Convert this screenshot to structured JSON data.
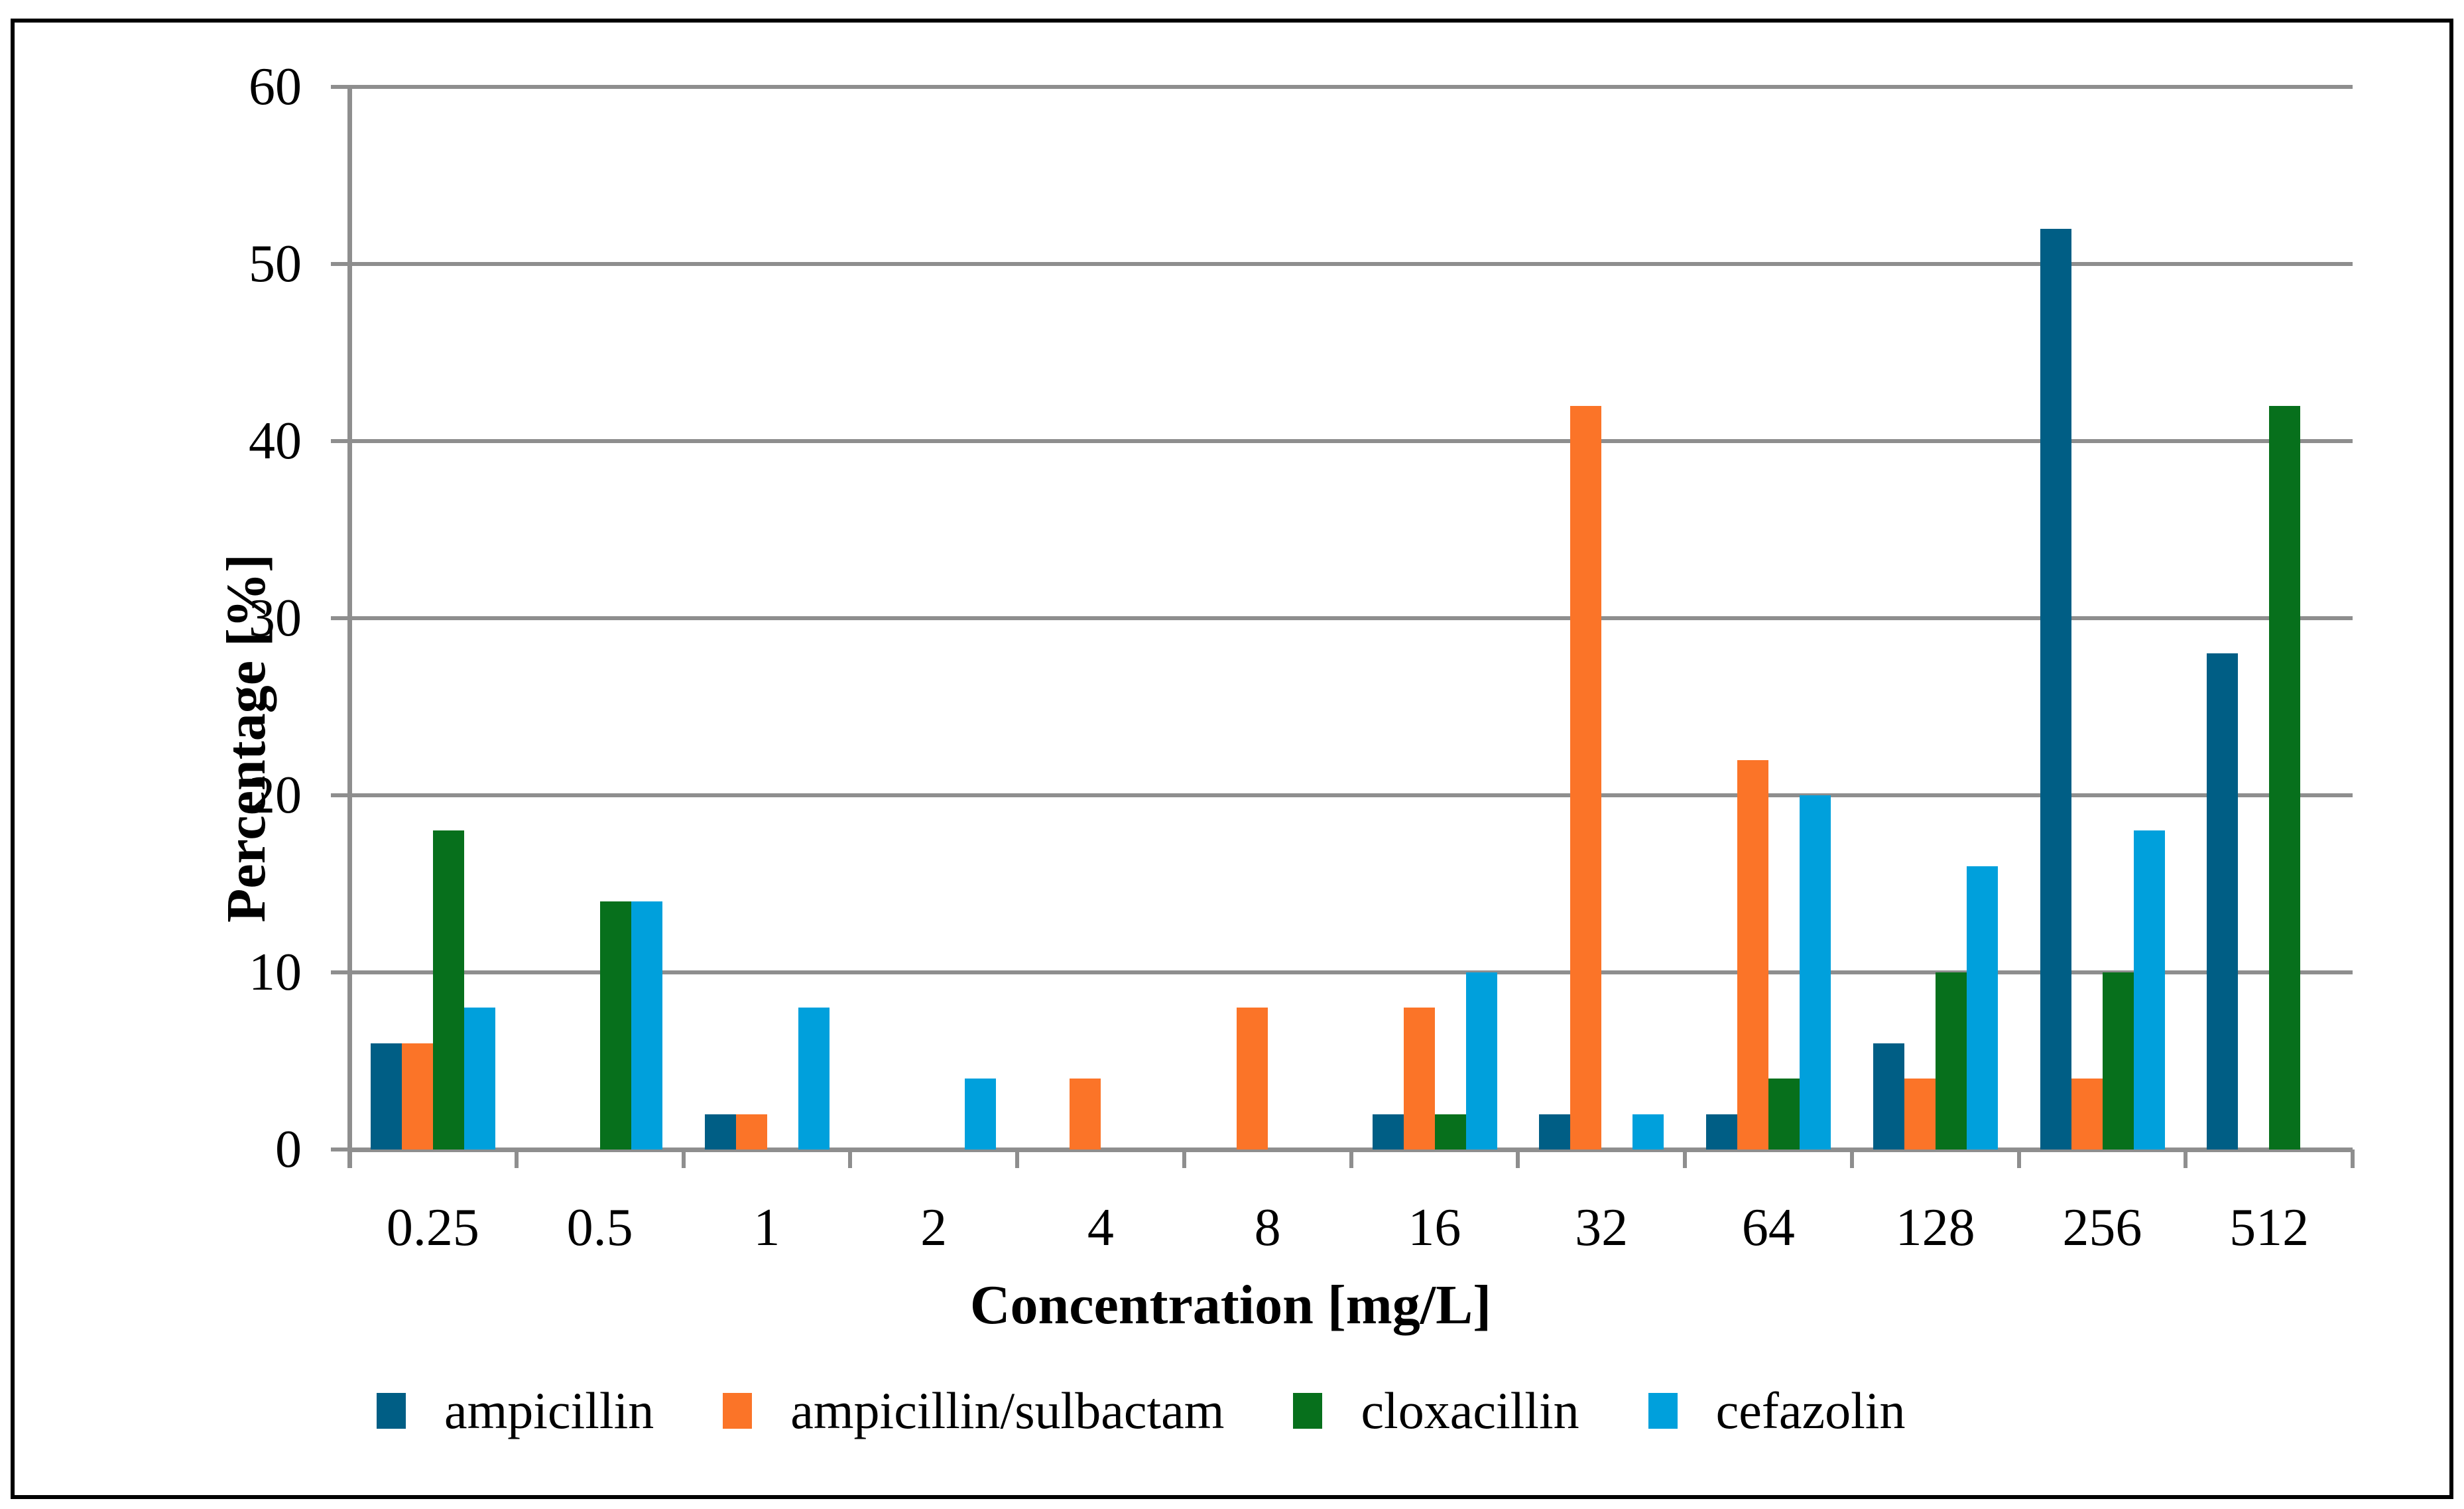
{
  "chart_data": {
    "type": "bar",
    "title": "",
    "xlabel": "Concentration  [mg/L]",
    "ylabel": "Percentage [%]",
    "categories": [
      "0.25",
      "0.5",
      "1",
      "2",
      "4",
      "8",
      "16",
      "32",
      "64",
      "128",
      "256",
      "512"
    ],
    "series": [
      {
        "name": "ampicillin",
        "color": "#005E85",
        "values": [
          6,
          0,
          2,
          0,
          0,
          0,
          2,
          2,
          2,
          6,
          52,
          28
        ]
      },
      {
        "name": "ampicillin/sulbactam",
        "color": "#FB7428",
        "values": [
          6,
          0,
          2,
          0,
          4,
          8,
          8,
          42,
          22,
          4,
          4,
          0
        ]
      },
      {
        "name": "cloxacillin",
        "color": "#07701C",
        "values": [
          18,
          14,
          0,
          0,
          0,
          0,
          2,
          0,
          4,
          10,
          10,
          42
        ]
      },
      {
        "name": "cefazolin",
        "color": "#00A0DC",
        "values": [
          8,
          14,
          8,
          4,
          0,
          0,
          10,
          2,
          20,
          16,
          18,
          0
        ]
      }
    ],
    "ylim": [
      0,
      60
    ],
    "ytick_step": 10,
    "yticks": [
      "0",
      "10",
      "20",
      "30",
      "40",
      "50",
      "60"
    ],
    "grid": true,
    "legend_position": "bottom"
  },
  "colors": {
    "grid": "#8E8E8E",
    "axis": "#8E8E8E",
    "frame": "#000000",
    "text": "#000000",
    "background": "#FFFFFF"
  }
}
